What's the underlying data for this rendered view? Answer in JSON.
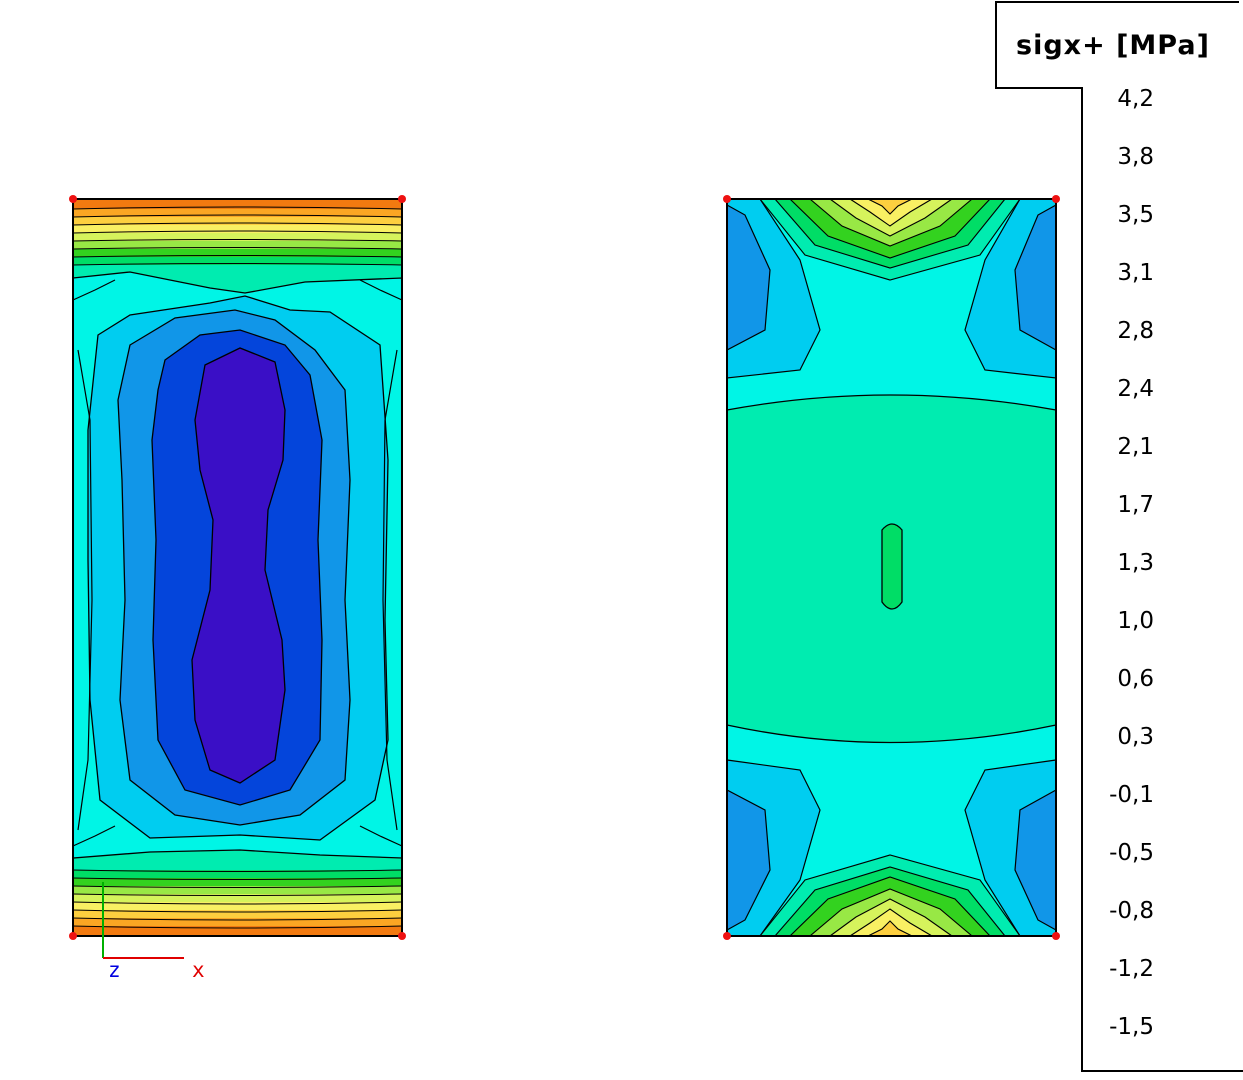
{
  "legend": {
    "title": "sigx+ [MPa]",
    "ticks": [
      "4,2",
      "3,8",
      "3,5",
      "3,1",
      "2,8",
      "2,4",
      "2,1",
      "1,7",
      "1,3",
      "1,0",
      "0,6",
      "0,3",
      "-0,1",
      "-0,5",
      "-0,8",
      "-1,2",
      "-1,5"
    ],
    "colors": [
      "#cc0000",
      "#e83a0a",
      "#f27a10",
      "#fba623",
      "#fdcf3f",
      "#f9f063",
      "#d6f35c",
      "#98e845",
      "#33d21f",
      "#00dd66",
      "#00ecb0",
      "#00f5e6",
      "#00cdf0",
      "#1196e8",
      "#0445db",
      "#3a0fc6"
    ]
  },
  "axes": {
    "x_label": "x",
    "z_label": "z",
    "x_color": "#e00000",
    "z_color": "#0000e0",
    "y_color": "#00b000"
  },
  "palette": {
    "red": "#cc0000",
    "orange_red": "#e83a0a",
    "orange": "#f27a10",
    "orange2": "#fba623",
    "yellow_orange": "#fdcf3f",
    "yellow": "#f9f063",
    "yellow_green": "#d6f35c",
    "light_green": "#98e845",
    "green": "#33d21f",
    "green2": "#00dd66",
    "teal": "#00ecb0",
    "cyan": "#00f5e6",
    "light_blue": "#00cdf0",
    "blue": "#1196e8",
    "dark_blue": "#0445db",
    "indigo": "#3a0fc6",
    "node": "#ee1111"
  }
}
